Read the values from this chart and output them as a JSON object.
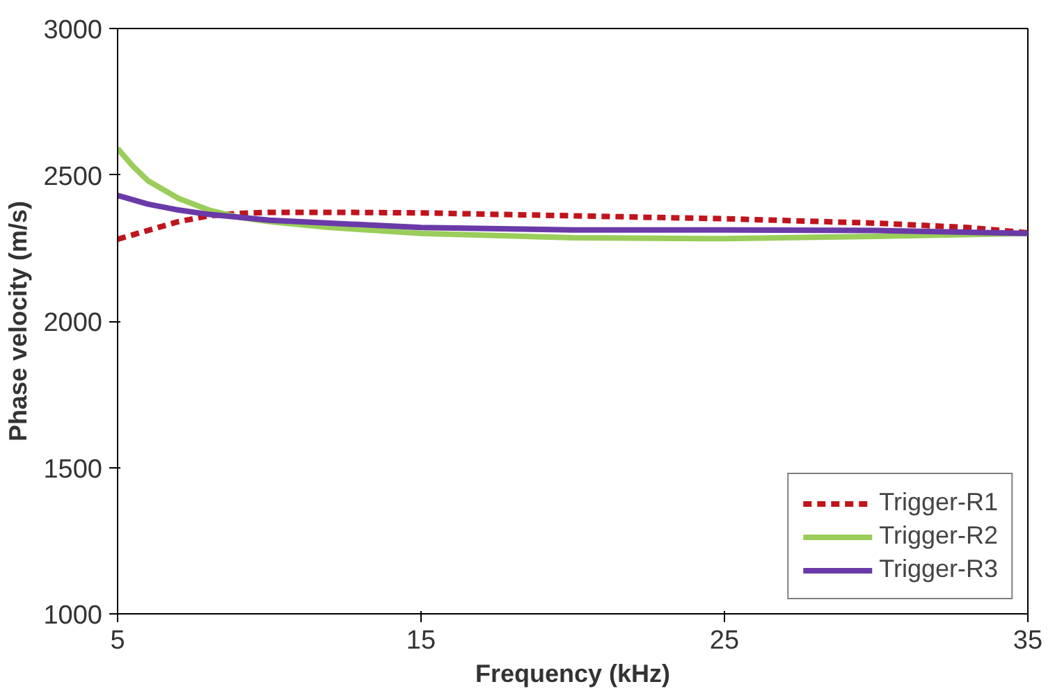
{
  "chart_data": {
    "type": "line",
    "xlabel": "Frequency (kHz)",
    "ylabel": "Phase velocity (m/s)",
    "xlim": [
      5,
      35
    ],
    "xticks": [
      5,
      15,
      25,
      35
    ],
    "ylim": [
      1000,
      3000
    ],
    "yticks": [
      1000,
      1500,
      2000,
      2500,
      3000
    ],
    "grid": false,
    "legend": "bottom right",
    "marker": "none",
    "series": [
      {
        "name": "Trigger-R1",
        "color": "#c0141c",
        "line_style": "dashed",
        "x": [
          5,
          6,
          7,
          8,
          9,
          10,
          12,
          15,
          20,
          25,
          30,
          33,
          35
        ],
        "values": [
          2280,
          2310,
          2340,
          2360,
          2368,
          2372,
          2372,
          2370,
          2360,
          2350,
          2335,
          2320,
          2302
        ]
      },
      {
        "name": "Trigger-R2",
        "color": "#9acd5a",
        "line_style": "solid",
        "x": [
          5,
          5.5,
          6,
          7,
          8,
          9,
          10,
          12,
          15,
          20,
          25,
          30,
          35
        ],
        "values": [
          2590,
          2530,
          2480,
          2420,
          2380,
          2355,
          2340,
          2320,
          2300,
          2285,
          2282,
          2290,
          2300
        ]
      },
      {
        "name": "Trigger-R3",
        "color": "#6a3aa8",
        "line_style": "solid",
        "x": [
          5,
          6,
          7,
          8,
          9,
          10,
          12,
          15,
          20,
          25,
          30,
          35
        ],
        "values": [
          2430,
          2400,
          2380,
          2365,
          2355,
          2345,
          2335,
          2320,
          2312,
          2312,
          2310,
          2300
        ]
      }
    ]
  }
}
